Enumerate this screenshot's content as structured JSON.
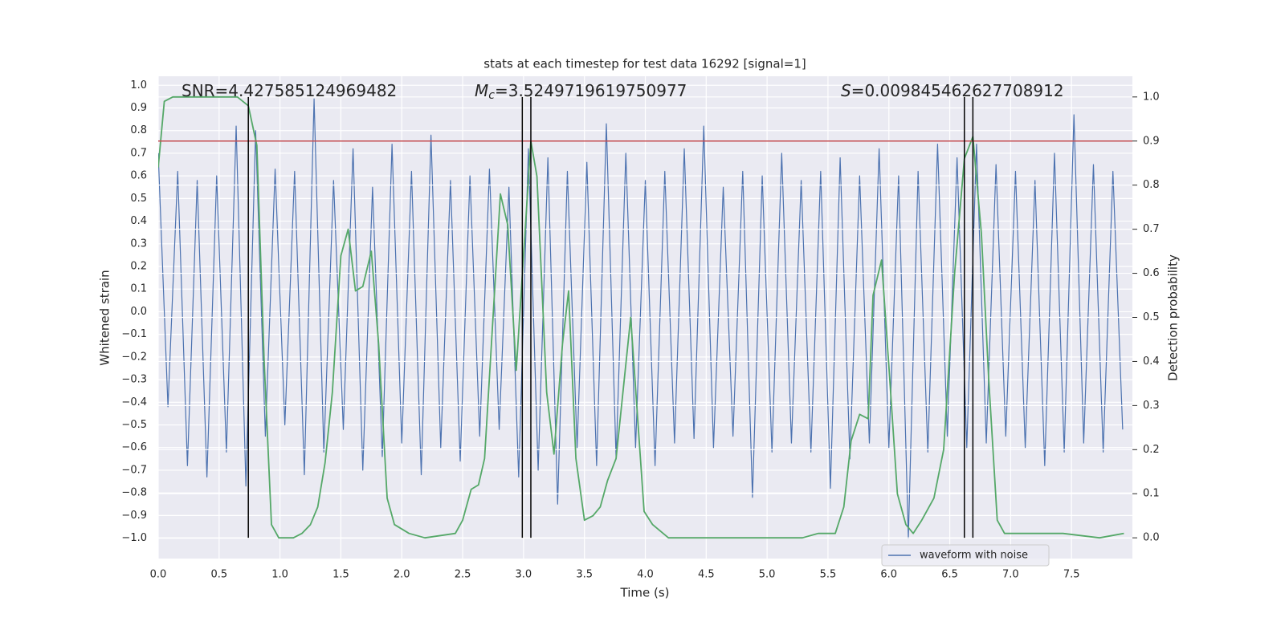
{
  "chart_data": {
    "type": "line",
    "title": "stats at each timestep for test data 16292 [signal=1]",
    "x_label": "Time (s)",
    "y_label": "Whitened strain",
    "y2_label": "Detection probability",
    "background": "#eaeaf2",
    "grid": true,
    "legend": "lower right",
    "xlim": [
      0,
      8
    ],
    "ylim": [
      -1.09,
      1.04
    ],
    "y2lim": [
      -0.047,
      1.047
    ],
    "xticks": [
      {
        "value": 0,
        "label": "0.0"
      },
      {
        "value": 0.5,
        "label": "0.5"
      },
      {
        "value": 1,
        "label": "1.0"
      },
      {
        "value": 1.5,
        "label": "1.5"
      },
      {
        "value": 2,
        "label": "2.0"
      },
      {
        "value": 2.5,
        "label": "2.5"
      },
      {
        "value": 3,
        "label": "3.0"
      },
      {
        "value": 3.5,
        "label": "3.5"
      },
      {
        "value": 4,
        "label": "4.0"
      },
      {
        "value": 4.5,
        "label": "4.5"
      },
      {
        "value": 5,
        "label": "5.0"
      },
      {
        "value": 5.5,
        "label": "5.5"
      },
      {
        "value": 6,
        "label": "6.0"
      },
      {
        "value": 6.5,
        "label": "6.5"
      },
      {
        "value": 7,
        "label": "7.0"
      },
      {
        "value": 7.5,
        "label": "7.5"
      }
    ],
    "yticks": [
      {
        "value": -1,
        "label": "−1.0"
      },
      {
        "value": -0.9,
        "label": "−0.9"
      },
      {
        "value": -0.8,
        "label": "−0.8"
      },
      {
        "value": -0.7,
        "label": "−0.7"
      },
      {
        "value": -0.6,
        "label": "−0.6"
      },
      {
        "value": -0.5,
        "label": "−0.5"
      },
      {
        "value": -0.4,
        "label": "−0.4"
      },
      {
        "value": -0.3,
        "label": "−0.3"
      },
      {
        "value": -0.2,
        "label": "−0.2"
      },
      {
        "value": -0.1,
        "label": "−0.1"
      },
      {
        "value": 0,
        "label": "0.0"
      },
      {
        "value": 0.1,
        "label": "0.1"
      },
      {
        "value": 0.2,
        "label": "0.2"
      },
      {
        "value": 0.3,
        "label": "0.3"
      },
      {
        "value": 0.4,
        "label": "0.4"
      },
      {
        "value": 0.5,
        "label": "0.5"
      },
      {
        "value": 0.6,
        "label": "0.6"
      },
      {
        "value": 0.7,
        "label": "0.7"
      },
      {
        "value": 0.8,
        "label": "0.8"
      },
      {
        "value": 0.9,
        "label": "0.9"
      },
      {
        "value": 1,
        "label": "1.0"
      }
    ],
    "y2ticks": [
      {
        "value": 0,
        "label": "0.0"
      },
      {
        "value": 0.1,
        "label": "0.1"
      },
      {
        "value": 0.2,
        "label": "0.2"
      },
      {
        "value": 0.3,
        "label": "0.3"
      },
      {
        "value": 0.4,
        "label": "0.4"
      },
      {
        "value": 0.5,
        "label": "0.5"
      },
      {
        "value": 0.6,
        "label": "0.6"
      },
      {
        "value": 0.7,
        "label": "0.7"
      },
      {
        "value": 0.8,
        "label": "0.8"
      },
      {
        "value": 0.9,
        "label": "0.9"
      },
      {
        "value": 1,
        "label": "1.0"
      }
    ],
    "series": [
      {
        "name": "waveform with noise",
        "color": "#4c72b0",
        "x": [
          0.0,
          0.08,
          0.16,
          0.24,
          0.32,
          0.4,
          0.48,
          0.56,
          0.64,
          0.72,
          0.8,
          0.88,
          0.96,
          1.04,
          1.12,
          1.2,
          1.28,
          1.36,
          1.44,
          1.52,
          1.6,
          1.68,
          1.76,
          1.84,
          1.92,
          2.0,
          2.08,
          2.16,
          2.24,
          2.32,
          2.4,
          2.48,
          2.56,
          2.64,
          2.72,
          2.8,
          2.88,
          2.96,
          3.04,
          3.12,
          3.2,
          3.28,
          3.36,
          3.44,
          3.52,
          3.6,
          3.68,
          3.76,
          3.84,
          3.92,
          4.0,
          4.08,
          4.16,
          4.24,
          4.32,
          4.4,
          4.48,
          4.56,
          4.64,
          4.72,
          4.8,
          4.88,
          4.96,
          5.04,
          5.12,
          5.2,
          5.28,
          5.36,
          5.44,
          5.52,
          5.6,
          5.68,
          5.76,
          5.84,
          5.92,
          6.0,
          6.08,
          6.16,
          6.24,
          6.32,
          6.4,
          6.48,
          6.56,
          6.64,
          6.72,
          6.8,
          6.88,
          6.96,
          7.04,
          7.12,
          7.2,
          7.28,
          7.36,
          7.44,
          7.52,
          7.6,
          7.68,
          7.76,
          7.84,
          7.92
        ],
        "values": [
          0.7,
          -0.42,
          0.62,
          -0.68,
          0.58,
          -0.73,
          0.6,
          -0.62,
          0.82,
          -0.77,
          0.8,
          -0.55,
          0.63,
          -0.5,
          0.62,
          -0.72,
          0.94,
          -0.62,
          0.58,
          -0.52,
          0.72,
          -0.7,
          0.55,
          -0.64,
          0.74,
          -0.58,
          0.62,
          -0.72,
          0.78,
          -0.6,
          0.58,
          -0.66,
          0.6,
          -0.55,
          0.63,
          -0.52,
          0.55,
          -0.73,
          0.72,
          -0.7,
          0.68,
          -0.85,
          0.62,
          -0.6,
          0.66,
          -0.68,
          0.83,
          -0.65,
          0.7,
          -0.6,
          0.58,
          -0.68,
          0.62,
          -0.58,
          0.72,
          -0.56,
          0.82,
          -0.6,
          0.55,
          -0.55,
          0.62,
          -0.82,
          0.6,
          -0.62,
          0.7,
          -0.58,
          0.58,
          -0.62,
          0.62,
          -0.78,
          0.68,
          -0.65,
          0.6,
          -0.58,
          0.72,
          -0.6,
          0.6,
          -1.0,
          0.62,
          -0.62,
          0.74,
          -0.55,
          0.68,
          -0.6,
          0.74,
          -0.58,
          0.65,
          -0.55,
          0.62,
          -0.6,
          0.58,
          -0.68,
          0.7,
          -0.62,
          0.87,
          -0.58,
          0.65,
          -0.62,
          0.62,
          -0.52
        ]
      },
      {
        "color": "#55a868",
        "axis": "y2",
        "x": [
          0.0,
          0.05,
          0.12,
          0.65,
          0.74,
          0.81,
          0.87,
          0.93,
          0.99,
          1.11,
          1.18,
          1.25,
          1.31,
          1.37,
          1.43,
          1.5,
          1.56,
          1.62,
          1.68,
          1.75,
          1.81,
          1.88,
          1.94,
          2.06,
          2.19,
          2.44,
          2.5,
          2.57,
          2.63,
          2.68,
          2.81,
          2.87,
          2.94,
          3.06,
          3.11,
          3.19,
          3.25,
          3.32,
          3.37,
          3.43,
          3.5,
          3.57,
          3.63,
          3.69,
          3.76,
          3.88,
          3.99,
          4.06,
          4.19,
          4.37,
          5.29,
          5.42,
          5.56,
          5.63,
          5.69,
          5.76,
          5.83,
          5.87,
          5.94,
          6.0,
          6.07,
          6.14,
          6.2,
          6.27,
          6.37,
          6.45,
          6.54,
          6.62,
          6.69,
          6.76,
          6.82,
          6.89,
          6.95,
          7.07,
          7.27,
          7.37,
          7.43,
          7.73,
          7.93
        ],
        "values": [
          0.84,
          0.99,
          1.0,
          1.0,
          0.98,
          0.89,
          0.4,
          0.03,
          0.0,
          0.0,
          0.01,
          0.03,
          0.07,
          0.17,
          0.33,
          0.64,
          0.7,
          0.56,
          0.57,
          0.65,
          0.44,
          0.09,
          0.03,
          0.01,
          0.0,
          0.01,
          0.04,
          0.11,
          0.12,
          0.18,
          0.78,
          0.71,
          0.38,
          0.9,
          0.82,
          0.33,
          0.19,
          0.44,
          0.56,
          0.18,
          0.04,
          0.05,
          0.07,
          0.13,
          0.18,
          0.5,
          0.06,
          0.03,
          0.0,
          0.0,
          0.0,
          0.01,
          0.01,
          0.07,
          0.22,
          0.28,
          0.27,
          0.55,
          0.63,
          0.39,
          0.1,
          0.03,
          0.01,
          0.04,
          0.09,
          0.2,
          0.6,
          0.86,
          0.91,
          0.69,
          0.36,
          0.04,
          0.01,
          0.01,
          0.01,
          0.01,
          0.01,
          0.0,
          0.01
        ]
      }
    ],
    "threshold": {
      "value": 0.9,
      "axis": "y2",
      "color": "#c44e52"
    },
    "vlines": {
      "x": [
        0.74,
        2.99,
        3.06,
        6.62,
        6.69
      ],
      "y2_range": [
        0,
        1
      ],
      "color": "#000000"
    },
    "annotations": [
      {
        "text": "SNR=4.427585124969482"
      },
      {
        "symbol": "M",
        "subscript": "c",
        "text": "=3.5249719619750977"
      },
      {
        "symbol": "S",
        "text": "=0.009845462627708912"
      }
    ]
  }
}
